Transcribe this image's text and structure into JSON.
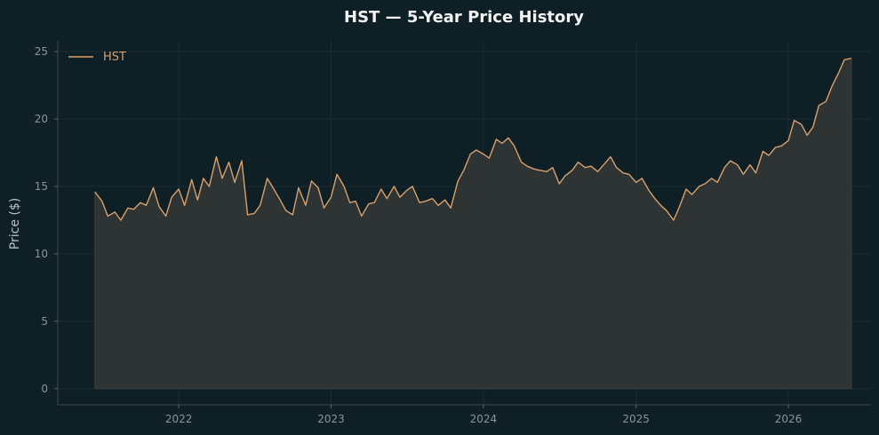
{
  "chart_data": {
    "type": "area",
    "title": "HST — 5-Year Price History",
    "xlabel": "",
    "ylabel": "Price ($)",
    "x_ticks": [
      "2022",
      "2023",
      "2024",
      "2025",
      "2026"
    ],
    "y_ticks": [
      0,
      5,
      10,
      15,
      20,
      25
    ],
    "ylim": [
      -1.2,
      25.8
    ],
    "xlim": [
      "2021-03-17",
      "2026-07-18"
    ],
    "grid": true,
    "legend": "top-left",
    "colors": {
      "line": "#d9a06c",
      "fill": "#2e3434",
      "background": "#0f1f26"
    },
    "series": [
      {
        "name": "HST",
        "points": [
          [
            "2021-06-14",
            14.6
          ],
          [
            "2021-07-01",
            13.9
          ],
          [
            "2021-07-15",
            12.8
          ],
          [
            "2021-08-01",
            13.1
          ],
          [
            "2021-08-15",
            12.5
          ],
          [
            "2021-09-01",
            13.4
          ],
          [
            "2021-09-15",
            13.3
          ],
          [
            "2021-10-01",
            13.8
          ],
          [
            "2021-10-15",
            13.6
          ],
          [
            "2021-11-01",
            14.9
          ],
          [
            "2021-11-15",
            13.5
          ],
          [
            "2021-12-01",
            12.8
          ],
          [
            "2021-12-15",
            14.2
          ],
          [
            "2022-01-01",
            14.8
          ],
          [
            "2022-01-15",
            13.6
          ],
          [
            "2022-02-01",
            15.5
          ],
          [
            "2022-02-15",
            14.0
          ],
          [
            "2022-03-01",
            15.6
          ],
          [
            "2022-03-15",
            15.0
          ],
          [
            "2022-04-01",
            17.2
          ],
          [
            "2022-04-15",
            15.6
          ],
          [
            "2022-05-01",
            16.8
          ],
          [
            "2022-05-15",
            15.3
          ],
          [
            "2022-06-01",
            16.9
          ],
          [
            "2022-06-15",
            12.9
          ],
          [
            "2022-07-01",
            13.0
          ],
          [
            "2022-07-15",
            13.6
          ],
          [
            "2022-08-01",
            15.6
          ],
          [
            "2022-08-15",
            14.9
          ],
          [
            "2022-09-01",
            14.0
          ],
          [
            "2022-09-15",
            13.2
          ],
          [
            "2022-10-01",
            12.9
          ],
          [
            "2022-10-15",
            14.9
          ],
          [
            "2022-11-01",
            13.6
          ],
          [
            "2022-11-15",
            15.4
          ],
          [
            "2022-12-01",
            14.9
          ],
          [
            "2022-12-15",
            13.4
          ],
          [
            "2023-01-01",
            14.2
          ],
          [
            "2023-01-15",
            15.9
          ],
          [
            "2023-02-01",
            15.0
          ],
          [
            "2023-02-15",
            13.8
          ],
          [
            "2023-03-01",
            13.9
          ],
          [
            "2023-03-15",
            12.8
          ],
          [
            "2023-04-01",
            13.7
          ],
          [
            "2023-04-15",
            13.8
          ],
          [
            "2023-05-01",
            14.8
          ],
          [
            "2023-05-15",
            14.1
          ],
          [
            "2023-06-01",
            15.0
          ],
          [
            "2023-06-15",
            14.2
          ],
          [
            "2023-07-01",
            14.7
          ],
          [
            "2023-07-15",
            15.0
          ],
          [
            "2023-08-01",
            13.8
          ],
          [
            "2023-08-15",
            13.9
          ],
          [
            "2023-09-01",
            14.1
          ],
          [
            "2023-09-15",
            13.6
          ],
          [
            "2023-10-01",
            14.0
          ],
          [
            "2023-10-15",
            13.4
          ],
          [
            "2023-11-01",
            15.4
          ],
          [
            "2023-11-15",
            16.2
          ],
          [
            "2023-12-01",
            17.4
          ],
          [
            "2023-12-15",
            17.7
          ],
          [
            "2024-01-01",
            17.4
          ],
          [
            "2024-01-15",
            17.1
          ],
          [
            "2024-02-01",
            18.5
          ],
          [
            "2024-02-15",
            18.2
          ],
          [
            "2024-03-01",
            18.6
          ],
          [
            "2024-03-15",
            18.0
          ],
          [
            "2024-04-01",
            16.8
          ],
          [
            "2024-04-15",
            16.5
          ],
          [
            "2024-05-01",
            16.3
          ],
          [
            "2024-05-15",
            16.2
          ],
          [
            "2024-06-01",
            16.1
          ],
          [
            "2024-06-15",
            16.4
          ],
          [
            "2024-07-01",
            15.2
          ],
          [
            "2024-07-15",
            15.8
          ],
          [
            "2024-08-01",
            16.2
          ],
          [
            "2024-08-15",
            16.8
          ],
          [
            "2024-09-01",
            16.4
          ],
          [
            "2024-09-15",
            16.5
          ],
          [
            "2024-10-01",
            16.1
          ],
          [
            "2024-10-15",
            16.6
          ],
          [
            "2024-11-01",
            17.2
          ],
          [
            "2024-11-15",
            16.4
          ],
          [
            "2024-12-01",
            16.0
          ],
          [
            "2024-12-15",
            15.9
          ],
          [
            "2025-01-01",
            15.3
          ],
          [
            "2025-01-15",
            15.6
          ],
          [
            "2025-02-01",
            14.7
          ],
          [
            "2025-02-15",
            14.1
          ],
          [
            "2025-03-01",
            13.6
          ],
          [
            "2025-03-15",
            13.2
          ],
          [
            "2025-04-01",
            12.5
          ],
          [
            "2025-04-15",
            13.5
          ],
          [
            "2025-05-01",
            14.8
          ],
          [
            "2025-05-15",
            14.4
          ],
          [
            "2025-06-01",
            15.0
          ],
          [
            "2025-06-15",
            15.2
          ],
          [
            "2025-07-01",
            15.6
          ],
          [
            "2025-07-15",
            15.3
          ],
          [
            "2025-08-01",
            16.4
          ],
          [
            "2025-08-15",
            16.9
          ],
          [
            "2025-09-01",
            16.6
          ],
          [
            "2025-09-15",
            15.9
          ],
          [
            "2025-10-01",
            16.6
          ],
          [
            "2025-10-15",
            16.0
          ],
          [
            "2025-11-01",
            17.6
          ],
          [
            "2025-11-15",
            17.3
          ],
          [
            "2025-12-01",
            17.9
          ],
          [
            "2025-12-15",
            18.0
          ],
          [
            "2026-01-01",
            18.4
          ],
          [
            "2026-01-15",
            19.9
          ],
          [
            "2026-02-01",
            19.6
          ],
          [
            "2026-02-15",
            18.8
          ],
          [
            "2026-03-01",
            19.4
          ],
          [
            "2026-03-15",
            21.0
          ],
          [
            "2026-04-01",
            21.3
          ],
          [
            "2026-04-15",
            22.4
          ],
          [
            "2026-05-01",
            23.4
          ],
          [
            "2026-05-15",
            24.4
          ],
          [
            "2026-06-01",
            24.5
          ]
        ]
      }
    ]
  }
}
